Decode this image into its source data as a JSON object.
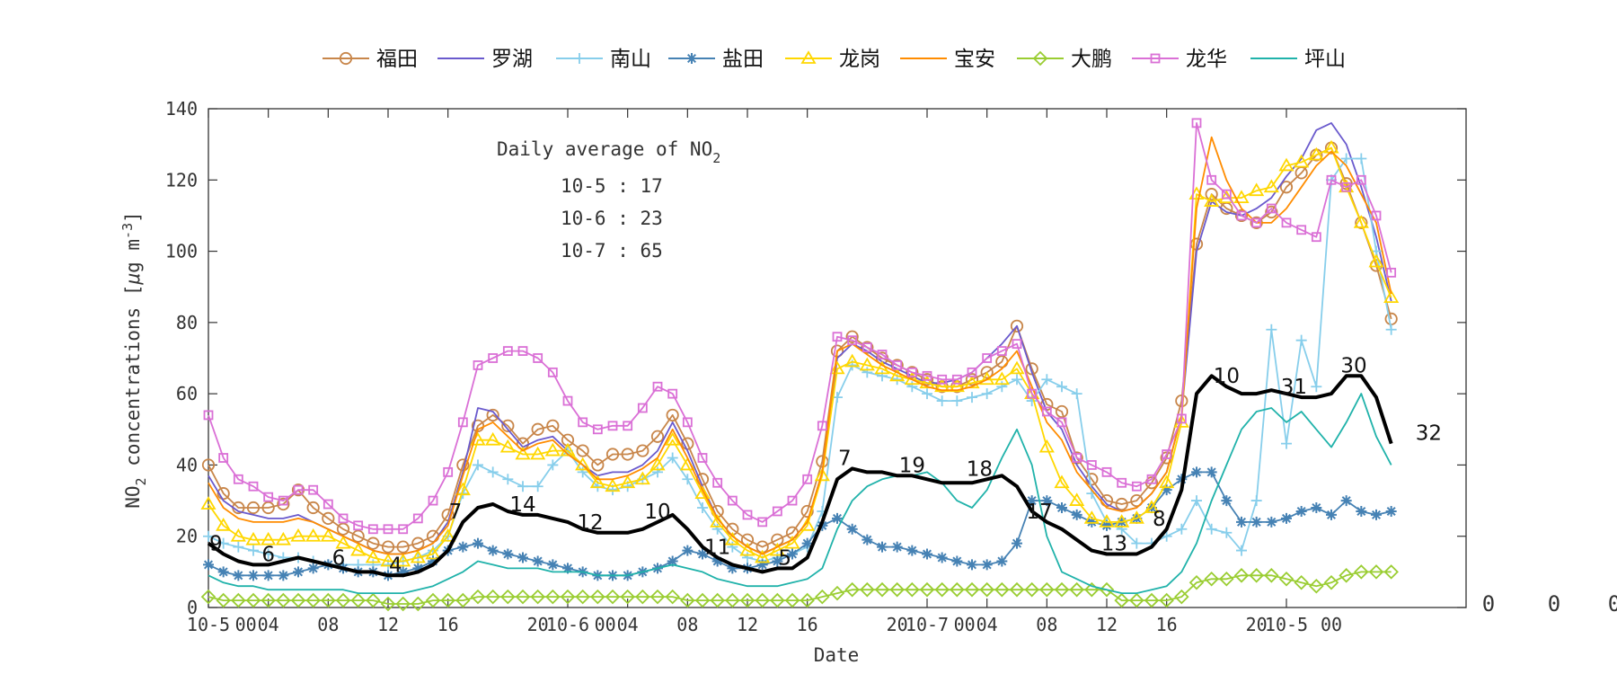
{
  "chart_data": {
    "type": "line",
    "xlabel": "Date",
    "ylabel_prefix": "NO",
    "ylabel_sub": "2",
    "ylabel_suffix": " concentrations [",
    "ylabel_mu": "μ",
    "ylabel_unit": "g m",
    "ylabel_sup": "-3",
    "ylabel_close": "]",
    "ylim": [
      0,
      140
    ],
    "xlim": [
      0,
      84
    ],
    "y_ticks": [
      0,
      20,
      40,
      60,
      80,
      100,
      120,
      140
    ],
    "x_ticks": [
      {
        "x": 0,
        "label": "10-5"
      },
      {
        "x": 4,
        "label": "04"
      },
      {
        "x": 8,
        "label": "08"
      },
      {
        "x": 12,
        "label": "12"
      },
      {
        "x": 16,
        "label": "16"
      },
      {
        "x": 24,
        "label": "10-6"
      },
      {
        "x": 28,
        "label": "04"
      },
      {
        "x": 32,
        "label": "08"
      },
      {
        "x": 36,
        "label": "12"
      },
      {
        "x": 40,
        "label": "16"
      },
      {
        "x": 48,
        "label": "10-7"
      },
      {
        "x": 52,
        "label": "04"
      },
      {
        "x": 56,
        "label": "08"
      },
      {
        "x": 60,
        "label": "12"
      },
      {
        "x": 64,
        "label": "16"
      },
      {
        "x": 72,
        "label": "10-5"
      }
    ],
    "x_labels_extra": [
      {
        "x": 2.5,
        "label": "00"
      },
      {
        "x": 22,
        "label": "20"
      },
      {
        "x": 26.5,
        "label": "00"
      },
      {
        "x": 46,
        "label": "20"
      },
      {
        "x": 50.5,
        "label": "00"
      },
      {
        "x": 70,
        "label": "20"
      },
      {
        "x": 75,
        "label": "00"
      }
    ],
    "overflow_labels": [
      "0",
      "0",
      "0"
    ],
    "grid": false,
    "legend_position": "top",
    "annotation": {
      "title_prefix": "Daily average of NO",
      "title_sub": "2",
      "lines": [
        "10-5 : 17",
        "10-6 : 23",
        "10-7 : 65"
      ]
    },
    "series": [
      {
        "name": "福田",
        "color": "#c8864a",
        "marker": "circle",
        "values": [
          40,
          32,
          28,
          28,
          28,
          29,
          33,
          28,
          25,
          22,
          20,
          18,
          17,
          17,
          18,
          20,
          26,
          40,
          51,
          54,
          51,
          46,
          50,
          51,
          47,
          44,
          40,
          43,
          43,
          44,
          48,
          54,
          46,
          36,
          27,
          22,
          19,
          17,
          19,
          21,
          27,
          41,
          72,
          76,
          73,
          70,
          68,
          66,
          64,
          62,
          62,
          64,
          66,
          69,
          79,
          67,
          57,
          55,
          42,
          36,
          30,
          29,
          30,
          35,
          42,
          58,
          102,
          116,
          112,
          110,
          108,
          111,
          118,
          122,
          127,
          129,
          119,
          108,
          96,
          81
        ]
      },
      {
        "name": "罗湖",
        "color": "#6a5acd",
        "marker": "none",
        "values": [
          37,
          30,
          27,
          26,
          25,
          25,
          26,
          24,
          22,
          20,
          18,
          16,
          15,
          15,
          16,
          18,
          24,
          38,
          56,
          55,
          50,
          45,
          47,
          48,
          44,
          40,
          37,
          38,
          38,
          40,
          44,
          52,
          44,
          34,
          25,
          20,
          17,
          15,
          17,
          19,
          24,
          38,
          70,
          74,
          72,
          69,
          67,
          65,
          63,
          63,
          64,
          66,
          70,
          74,
          79,
          66,
          55,
          50,
          40,
          34,
          29,
          27,
          28,
          32,
          38,
          54,
          100,
          114,
          111,
          110,
          112,
          115,
          121,
          126,
          134,
          136,
          130,
          118,
          104,
          86
        ]
      },
      {
        "name": "南山",
        "color": "#87ceeb",
        "marker": "plus",
        "values": [
          20,
          18,
          17,
          16,
          15,
          14,
          14,
          13,
          12,
          12,
          12,
          12,
          12,
          13,
          14,
          16,
          20,
          32,
          40,
          38,
          36,
          34,
          34,
          40,
          44,
          38,
          34,
          33,
          34,
          36,
          38,
          42,
          36,
          28,
          22,
          17,
          14,
          13,
          14,
          15,
          17,
          27,
          59,
          68,
          66,
          65,
          64,
          62,
          60,
          58,
          58,
          59,
          60,
          62,
          64,
          58,
          64,
          62,
          60,
          32,
          24,
          22,
          18,
          18,
          20,
          22,
          30,
          22,
          21,
          16,
          30,
          78,
          46,
          75,
          62,
          120,
          126,
          126,
          100,
          78
        ]
      },
      {
        "name": "盐田",
        "color": "#4682b4",
        "marker": "asterisk",
        "values": [
          12,
          10,
          9,
          9,
          9,
          9,
          10,
          11,
          12,
          11,
          10,
          10,
          9,
          10,
          11,
          13,
          16,
          17,
          18,
          16,
          15,
          14,
          13,
          12,
          11,
          10,
          9,
          9,
          9,
          10,
          11,
          13,
          16,
          15,
          13,
          11,
          11,
          12,
          13,
          15,
          18,
          23,
          25,
          22,
          19,
          17,
          17,
          16,
          15,
          14,
          13,
          12,
          12,
          13,
          18,
          30,
          30,
          28,
          26,
          24,
          23,
          24,
          25,
          28,
          33,
          36,
          38,
          38,
          30,
          24,
          24,
          24,
          25,
          27,
          28,
          26,
          30,
          27,
          26,
          27
        ]
      },
      {
        "name": "龙岗",
        "color": "#ffd700",
        "marker": "triangle",
        "values": [
          29,
          23,
          20,
          19,
          19,
          19,
          20,
          20,
          20,
          18,
          16,
          14,
          13,
          13,
          14,
          15,
          20,
          33,
          47,
          47,
          45,
          43,
          43,
          44,
          44,
          40,
          35,
          34,
          35,
          36,
          40,
          47,
          40,
          32,
          24,
          19,
          16,
          14,
          16,
          18,
          23,
          37,
          67,
          69,
          68,
          67,
          65,
          64,
          63,
          62,
          62,
          63,
          64,
          64,
          67,
          60,
          45,
          35,
          30,
          25,
          24,
          24,
          25,
          28,
          35,
          52,
          116,
          114,
          115,
          115,
          117,
          118,
          124,
          125,
          127,
          129,
          118,
          108,
          97,
          87
        ]
      },
      {
        "name": "宝安",
        "color": "#ff8c00",
        "marker": "none",
        "values": [
          35,
          28,
          25,
          24,
          24,
          24,
          25,
          24,
          22,
          20,
          18,
          16,
          15,
          15,
          16,
          18,
          23,
          37,
          50,
          52,
          48,
          44,
          46,
          47,
          43,
          40,
          36,
          36,
          37,
          39,
          42,
          50,
          42,
          33,
          25,
          20,
          17,
          15,
          17,
          19,
          24,
          38,
          72,
          74,
          71,
          68,
          66,
          64,
          62,
          61,
          61,
          62,
          64,
          67,
          72,
          62,
          52,
          47,
          38,
          33,
          28,
          27,
          28,
          32,
          38,
          54,
          112,
          132,
          120,
          112,
          108,
          108,
          112,
          118,
          124,
          128,
          124,
          116,
          108,
          88
        ]
      },
      {
        "name": "大鹏",
        "color": "#9acd32",
        "marker": "diamond",
        "values": [
          3,
          2,
          2,
          2,
          2,
          2,
          2,
          2,
          2,
          2,
          2,
          2,
          1,
          1,
          1,
          2,
          2,
          2,
          3,
          3,
          3,
          3,
          3,
          3,
          3,
          3,
          3,
          3,
          3,
          3,
          3,
          3,
          2,
          2,
          2,
          2,
          2,
          2,
          2,
          2,
          2,
          3,
          4,
          5,
          5,
          5,
          5,
          5,
          5,
          5,
          5,
          5,
          5,
          5,
          5,
          5,
          5,
          5,
          5,
          5,
          5,
          2,
          2,
          2,
          2,
          3,
          7,
          8,
          8,
          9,
          9,
          9,
          8,
          7,
          6,
          7,
          9,
          10,
          10,
          10
        ]
      },
      {
        "name": "龙华",
        "color": "#da70d6",
        "marker": "square",
        "values": [
          54,
          42,
          36,
          34,
          31,
          30,
          33,
          33,
          29,
          25,
          23,
          22,
          22,
          22,
          25,
          30,
          38,
          52,
          68,
          70,
          72,
          72,
          70,
          66,
          58,
          52,
          50,
          51,
          51,
          56,
          62,
          60,
          52,
          42,
          35,
          30,
          26,
          24,
          27,
          30,
          36,
          51,
          76,
          75,
          73,
          71,
          68,
          66,
          65,
          64,
          64,
          66,
          70,
          72,
          74,
          60,
          55,
          52,
          42,
          40,
          38,
          35,
          34,
          36,
          43,
          53,
          136,
          120,
          116,
          110,
          108,
          112,
          108,
          106,
          104,
          120,
          118,
          120,
          110,
          94
        ]
      },
      {
        "name": "坪山",
        "color": "#20b2aa",
        "marker": "none",
        "values": [
          9,
          7,
          6,
          6,
          5,
          5,
          5,
          5,
          5,
          5,
          4,
          4,
          4,
          4,
          5,
          6,
          8,
          10,
          13,
          12,
          11,
          11,
          11,
          10,
          10,
          10,
          9,
          9,
          9,
          10,
          11,
          12,
          11,
          10,
          8,
          7,
          6,
          6,
          6,
          7,
          8,
          11,
          22,
          30,
          34,
          36,
          37,
          37,
          38,
          35,
          30,
          28,
          33,
          42,
          50,
          40,
          20,
          10,
          8,
          6,
          5,
          4,
          4,
          5,
          6,
          10,
          18,
          30,
          40,
          50,
          55,
          56,
          52,
          55,
          50,
          45,
          52,
          60,
          48,
          40
        ]
      }
    ],
    "average": {
      "color": "#000000",
      "values": [
        18,
        15,
        13,
        12,
        12,
        13,
        14,
        13,
        12,
        11,
        10,
        10,
        9,
        9,
        10,
        12,
        16,
        24,
        28,
        29,
        27,
        26,
        26,
        25,
        24,
        22,
        21,
        21,
        21,
        22,
        24,
        26,
        22,
        17,
        14,
        12,
        11,
        10,
        11,
        11,
        14,
        24,
        36,
        39,
        38,
        38,
        37,
        37,
        36,
        35,
        35,
        35,
        36,
        37,
        34,
        27,
        24,
        22,
        19,
        16,
        15,
        15,
        15,
        17,
        22,
        33,
        60,
        65,
        62,
        60,
        60,
        61,
        60,
        59,
        59,
        60,
        65,
        65,
        59,
        46
      ]
    },
    "segment_labels": [
      {
        "x": 0.5,
        "label": "9"
      },
      {
        "x": 4,
        "label": "6"
      },
      {
        "x": 8.7,
        "label": "6"
      },
      {
        "x": 12.5,
        "label": "4"
      },
      {
        "x": 16.5,
        "label": "7"
      },
      {
        "x": 21,
        "label": "14"
      },
      {
        "x": 25.5,
        "label": "12"
      },
      {
        "x": 30,
        "label": "10"
      },
      {
        "x": 34,
        "label": "11"
      },
      {
        "x": 38.5,
        "label": "5"
      },
      {
        "x": 42.5,
        "label": "7"
      },
      {
        "x": 47,
        "label": "19"
      },
      {
        "x": 51.5,
        "label": "18"
      },
      {
        "x": 55.5,
        "label": "17"
      },
      {
        "x": 60.5,
        "label": "13"
      },
      {
        "x": 63.5,
        "label": "8"
      },
      {
        "x": 68,
        "label": "10"
      },
      {
        "x": 72.5,
        "label": "31"
      },
      {
        "x": 76.5,
        "label": "30"
      },
      {
        "x": 81.5,
        "label": "32"
      }
    ]
  }
}
